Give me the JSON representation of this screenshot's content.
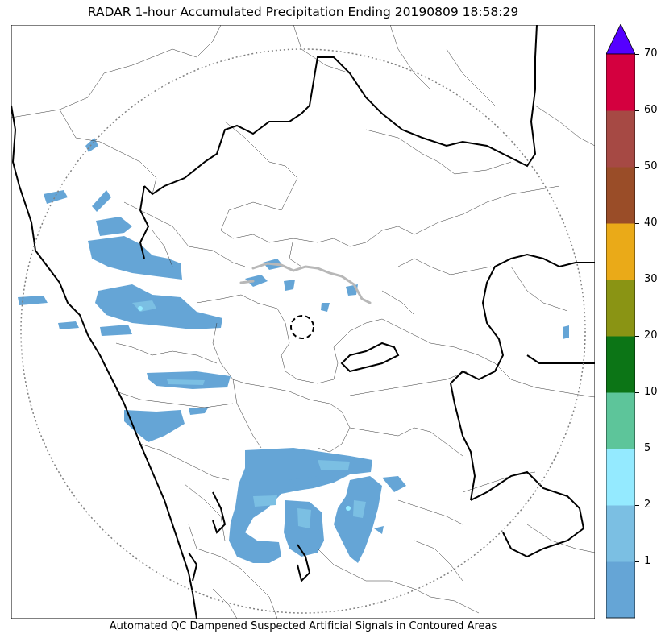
{
  "title": "RADAR 1-hour Accumulated Precipitation Ending 20190809 18:58:29",
  "caption": "Automated QC Dampened Suspected Artificial Signals in Contoured Areas",
  "colorbar": {
    "unit": "",
    "ticks": [
      "1",
      "2",
      "5",
      "10",
      "20",
      "30",
      "40",
      "50",
      "60",
      "70"
    ],
    "levels": [
      {
        "range": "0-1",
        "color": "#65a5d6"
      },
      {
        "range": "1-2",
        "color": "#7bbfe3"
      },
      {
        "range": "2-5",
        "color": "#94eaff"
      },
      {
        "range": "5-10",
        "color": "#5dc59a"
      },
      {
        "range": "10-20",
        "color": "#0c7516"
      },
      {
        "range": "20-30",
        "color": "#8a9414"
      },
      {
        "range": "30-40",
        "color": "#eaaa18"
      },
      {
        "range": "40-50",
        "color": "#9a4d28"
      },
      {
        "range": "50-60",
        "color": "#a64944"
      },
      {
        "range": "60-70",
        "color": "#d4003f"
      }
    ],
    "extend_color": "#5500ff"
  },
  "map": {
    "radar_range_ring": "dotted gray circle",
    "radar_site_marker": "dashed black circle"
  }
}
